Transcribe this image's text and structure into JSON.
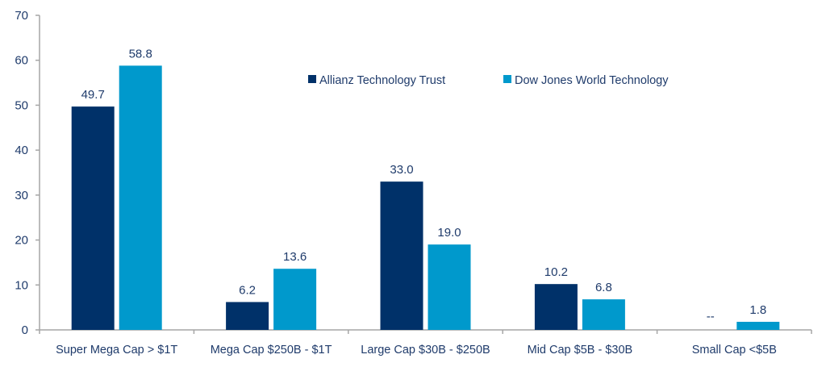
{
  "chart_data": {
    "type": "bar",
    "title": "",
    "xlabel": "",
    "ylabel": "",
    "ylim": [
      0,
      70
    ],
    "yticks": [
      0,
      10,
      20,
      30,
      40,
      50,
      60,
      70
    ],
    "grid": false,
    "legend_position": "top-center",
    "categories": [
      "Super Mega Cap > $1T",
      "Mega Cap $250B - $1T",
      "Large Cap $30B - $250B",
      "Mid Cap $5B - $30B",
      "Small Cap <$5B"
    ],
    "series": [
      {
        "name": "Allianz Technology Trust",
        "color": "#003169",
        "values": [
          49.7,
          6.2,
          33.0,
          10.2,
          null
        ],
        "labels": [
          "49.7",
          "6.2",
          "33.0",
          "10.2",
          "--"
        ]
      },
      {
        "name": "Dow Jones World Technology",
        "color": "#0099cc",
        "values": [
          58.8,
          13.6,
          19.0,
          6.8,
          1.8
        ],
        "labels": [
          "58.8",
          "13.6",
          "19.0",
          "6.8",
          "1.8"
        ]
      }
    ]
  }
}
